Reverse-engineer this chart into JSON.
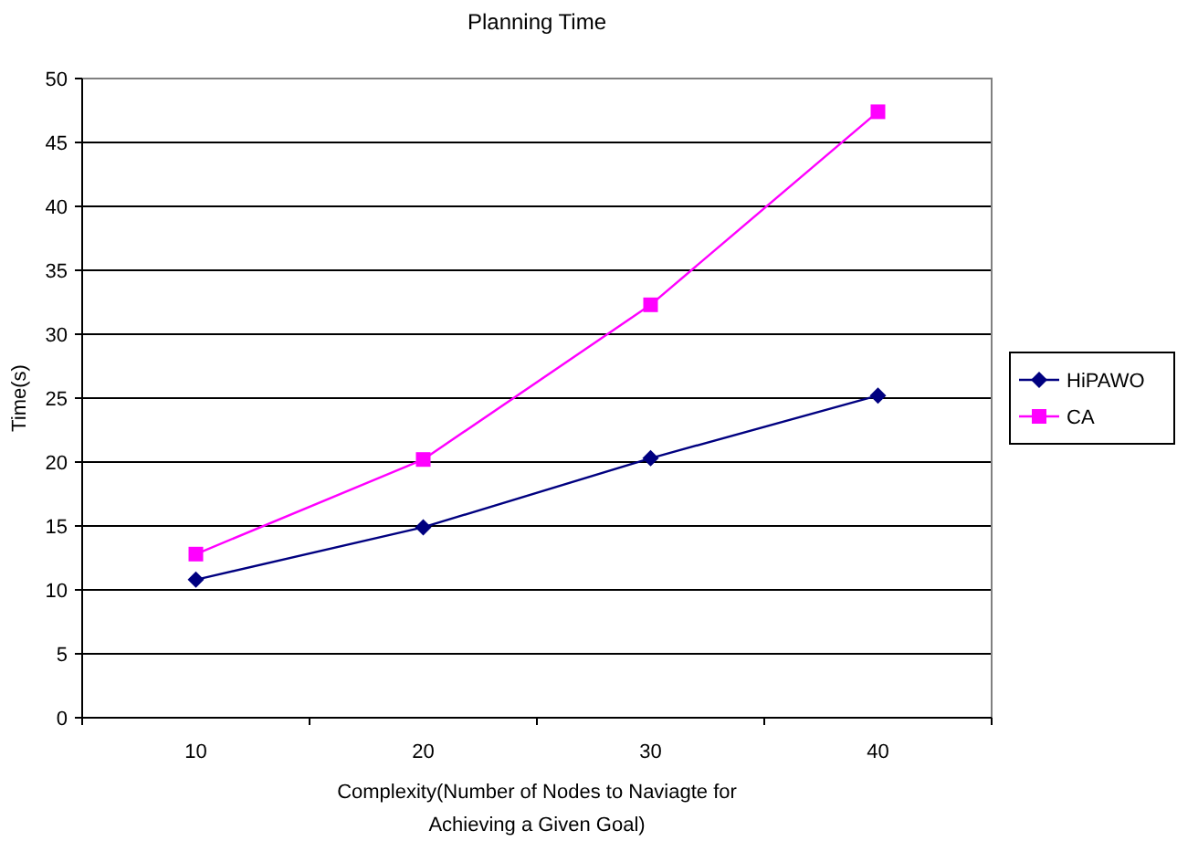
{
  "chart_data": {
    "type": "line",
    "title": "Planning Time",
    "xlabel": "Complexity(Number of Nodes to Naviagte for Achieving a Given Goal)",
    "ylabel": "Time(s)",
    "categories": [
      "10",
      "20",
      "30",
      "40"
    ],
    "ylim": [
      0,
      50
    ],
    "yticks": [
      0,
      5,
      10,
      15,
      20,
      25,
      30,
      35,
      40,
      45,
      50
    ],
    "grid": "y",
    "legend": "right",
    "series": [
      {
        "name": "HiPAWO",
        "color": "#000080",
        "marker": "diamond",
        "values": [
          10.8,
          14.9,
          20.3,
          25.2
        ]
      },
      {
        "name": "CA",
        "color": "#ff00ff",
        "marker": "square",
        "values": [
          12.8,
          20.2,
          32.3,
          47.4
        ]
      }
    ]
  }
}
